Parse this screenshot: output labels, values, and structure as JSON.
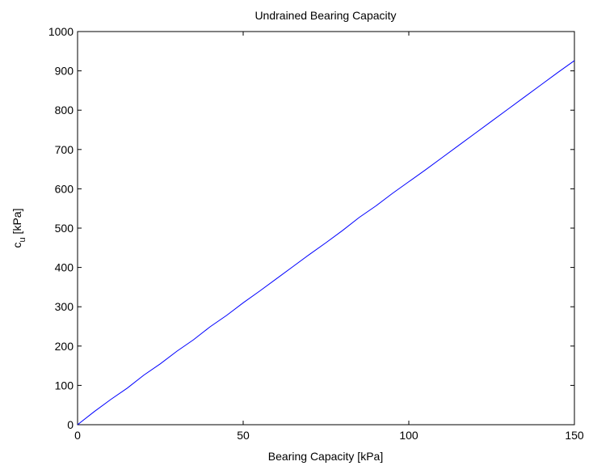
{
  "chart_data": {
    "type": "line",
    "title": "Undrained Bearing Capacity",
    "xlabel": "Bearing Capacity [kPa]",
    "ylabel": {
      "main": "c",
      "sub": "u",
      "rest": " [kPa]"
    },
    "xlim": [
      0,
      150
    ],
    "ylim": [
      0,
      1000
    ],
    "xticks": [
      0,
      50,
      100,
      150
    ],
    "yticks": [
      0,
      100,
      200,
      300,
      400,
      500,
      600,
      700,
      800,
      900,
      1000
    ],
    "grid": false,
    "series": [
      {
        "color": "#0000ff",
        "x": [
          0,
          5,
          10,
          15,
          20,
          25,
          30,
          35,
          40,
          45,
          50,
          55,
          60,
          65,
          70,
          75,
          80,
          85,
          90,
          95,
          100,
          105,
          110,
          115,
          120,
          125,
          130,
          135,
          140,
          145,
          150
        ],
        "y": [
          0,
          33,
          64,
          93,
          126,
          155,
          187,
          216,
          249,
          278,
          310,
          340,
          371,
          402,
          433,
          463,
          494,
          527,
          556,
          588,
          618,
          648,
          679,
          710,
          741,
          772,
          803,
          834,
          865,
          896,
          926
        ]
      }
    ]
  }
}
